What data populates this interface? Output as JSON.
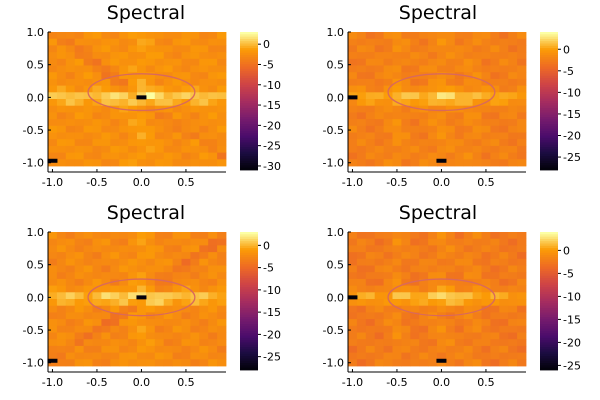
{
  "chart_data": [
    {
      "type": "heatmap",
      "title": "Spectral",
      "x_ticks": [
        "-1.0",
        "-0.5",
        "0.0",
        "0.5"
      ],
      "y_ticks": [
        "1.0",
        "0.5",
        "0.0",
        "-0.5",
        "-1.0"
      ],
      "colorbar_ticks": [
        "0",
        "-5",
        "-10",
        "-15",
        "-20",
        "-25",
        "-30"
      ],
      "clim": [
        -31,
        3
      ],
      "colormap": "inferno",
      "variant": "diagonal",
      "dark_cells": [
        [
          0.0,
          0.0
        ],
        [
          -1.0,
          -0.97
        ]
      ],
      "ellipse": {
        "cx": 0.0,
        "cy": 0.08,
        "rx": 0.6,
        "ry": 0.28,
        "color": "#d9695c"
      }
    },
    {
      "type": "heatmap",
      "title": "Spectral",
      "x_ticks": [
        "-1.0",
        "-0.5",
        "0.0",
        "0.5"
      ],
      "y_ticks": [
        "1.0",
        "0.5",
        "0.0",
        "-0.5",
        "-1.0"
      ],
      "colorbar_ticks": [
        "0",
        "-5",
        "-10",
        "-15",
        "-20",
        "-25"
      ],
      "clim": [
        -28,
        4
      ],
      "colormap": "inferno",
      "variant": "cross",
      "dark_cells": [
        [
          -1.0,
          0.0
        ],
        [
          0.0,
          -0.97
        ]
      ],
      "ellipse": {
        "cx": 0.0,
        "cy": 0.08,
        "rx": 0.6,
        "ry": 0.28,
        "color": "#d9695c"
      }
    },
    {
      "type": "heatmap",
      "title": "Spectral",
      "x_ticks": [
        "-1.0",
        "-0.5",
        "0.0",
        "0.5"
      ],
      "y_ticks": [
        "1.0",
        "0.5",
        "0.0",
        "-0.5",
        "-1.0"
      ],
      "colorbar_ticks": [
        "0",
        "-5",
        "-10",
        "-15",
        "-20",
        "-25"
      ],
      "clim": [
        -28,
        3
      ],
      "colormap": "inferno",
      "variant": "antidiagonal",
      "dark_cells": [
        [
          0.0,
          0.0
        ],
        [
          -1.0,
          -0.97
        ]
      ],
      "ellipse": {
        "cx": 0.0,
        "cy": 0.0,
        "rx": 0.6,
        "ry": 0.28,
        "color": "#d9695c"
      }
    },
    {
      "type": "heatmap",
      "title": "Spectral",
      "x_ticks": [
        "-1.0",
        "-0.5",
        "0.0",
        "0.5"
      ],
      "y_ticks": [
        "1.0",
        "0.5",
        "0.0",
        "-0.5",
        "-1.0"
      ],
      "colorbar_ticks": [
        "0",
        "-5",
        "-10",
        "-15",
        "-20",
        "-25"
      ],
      "clim": [
        -26,
        4
      ],
      "colormap": "inferno",
      "variant": "cross",
      "dark_cells": [
        [
          -1.0,
          0.0
        ],
        [
          0.0,
          -0.97
        ]
      ],
      "ellipse": {
        "cx": 0.0,
        "cy": 0.0,
        "rx": 0.6,
        "ry": 0.28,
        "color": "#d9695c"
      }
    }
  ]
}
